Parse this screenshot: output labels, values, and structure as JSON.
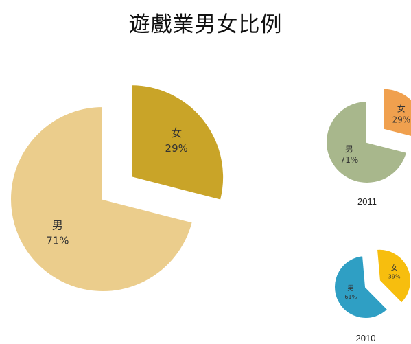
{
  "title": "遊戲業男女比例",
  "chart_data": [
    {
      "type": "pie",
      "title": "",
      "slices": [
        {
          "label": "女",
          "value": 29,
          "value_label": "29%",
          "color": "#c9a428",
          "exploded": true
        },
        {
          "label": "男",
          "value": 71,
          "value_label": "71%",
          "color": "#ebcd8c",
          "exploded": false
        }
      ]
    },
    {
      "type": "pie",
      "title": "2011",
      "slices": [
        {
          "label": "女",
          "value": 29,
          "value_label": "29%",
          "color": "#f0a04e",
          "exploded": true
        },
        {
          "label": "男",
          "value": 71,
          "value_label": "71%",
          "color": "#a8b78c",
          "exploded": false
        }
      ]
    },
    {
      "type": "pie",
      "title": "2010",
      "slices": [
        {
          "label": "女",
          "value": 39,
          "value_label": "39%",
          "color": "#f7be0e",
          "exploded": true
        },
        {
          "label": "男",
          "value": 61,
          "value_label": "61%",
          "color": "#2f9fc4",
          "exploded": false
        }
      ]
    }
  ]
}
